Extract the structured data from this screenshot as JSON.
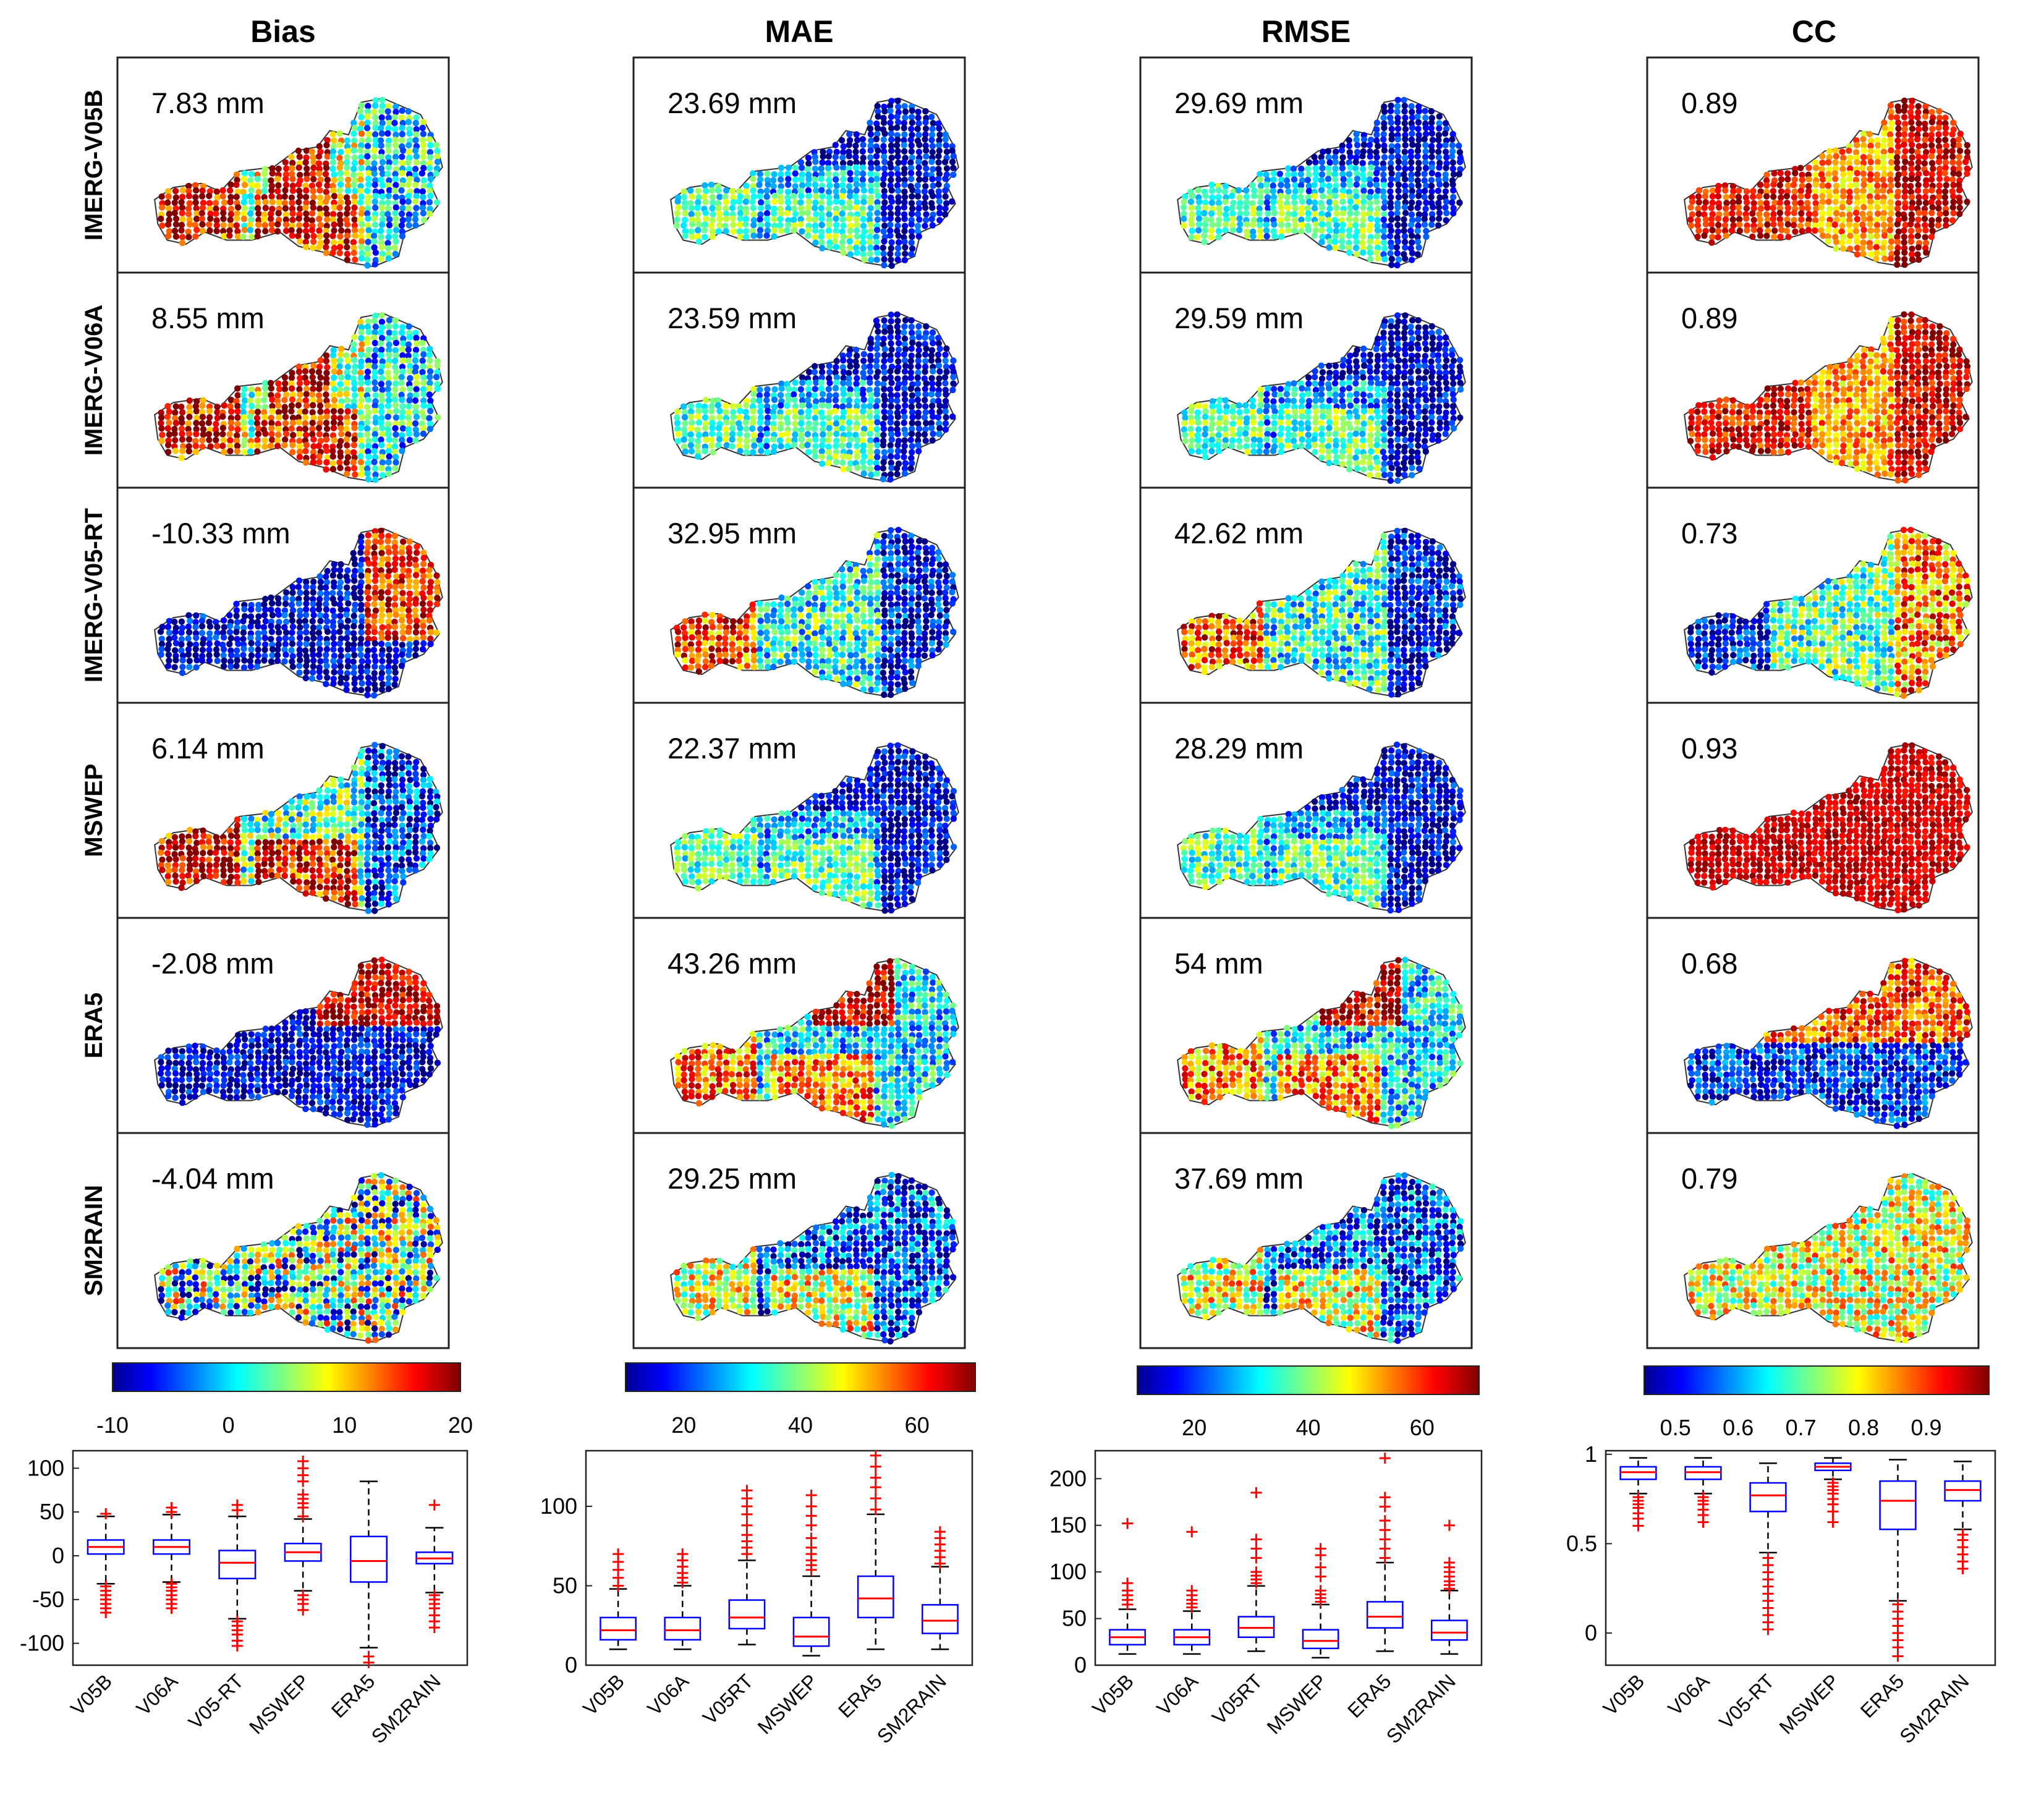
{
  "colors": {
    "panel_frame": "#222222",
    "box": "#0000ff",
    "median": "#ff0000",
    "outlier": "#ff0000",
    "whisker": "#000000",
    "map_outline": "#333333"
  },
  "icons": {
    "map_point": "circle-marker",
    "outlier_marker": "plus-marker"
  },
  "products": [
    "IMERG-V05B",
    "IMERG-V06A",
    "IMERG-V05-RT",
    "MSWEP",
    "ERA5",
    "SM2RAIN"
  ],
  "chart_data": [
    {
      "type": "heatmap",
      "metric": "Bias",
      "title": "Bias",
      "colormap": "jet",
      "colorbar": {
        "range": [
          -10,
          20
        ],
        "ticks": [
          -10,
          0,
          10,
          20
        ],
        "tick_labels": [
          "-10",
          "0",
          "10",
          "20"
        ]
      },
      "panels": [
        {
          "product": "IMERG-V05B",
          "annotation": "7.83 mm",
          "value": 7.83
        },
        {
          "product": "IMERG-V06A",
          "annotation": "8.55 mm",
          "value": 8.55
        },
        {
          "product": "IMERG-V05-RT",
          "annotation": "-10.33 mm",
          "value": -10.33
        },
        {
          "product": "MSWEP",
          "annotation": "6.14 mm",
          "value": 6.14
        },
        {
          "product": "ERA5",
          "annotation": "-2.08 mm",
          "value": -2.08
        },
        {
          "product": "SM2RAIN",
          "annotation": "-4.04 mm",
          "value": -4.04
        }
      ]
    },
    {
      "type": "heatmap",
      "metric": "MAE",
      "title": "MAE",
      "colormap": "jet",
      "colorbar": {
        "range": [
          10,
          70
        ],
        "ticks": [
          20,
          40,
          60
        ],
        "tick_labels": [
          "20",
          "40",
          "60"
        ]
      },
      "panels": [
        {
          "product": "IMERG-V05B",
          "annotation": "23.69 mm",
          "value": 23.69
        },
        {
          "product": "IMERG-V06A",
          "annotation": "23.59 mm",
          "value": 23.59
        },
        {
          "product": "IMERG-V05-RT",
          "annotation": "32.95 mm",
          "value": 32.95
        },
        {
          "product": "MSWEP",
          "annotation": "22.37 mm",
          "value": 22.37
        },
        {
          "product": "ERA5",
          "annotation": "43.26 mm",
          "value": 43.26
        },
        {
          "product": "SM2RAIN",
          "annotation": "29.25 mm",
          "value": 29.25
        }
      ]
    },
    {
      "type": "heatmap",
      "metric": "RMSE",
      "title": "RMSE",
      "colormap": "jet",
      "colorbar": {
        "range": [
          10,
          70
        ],
        "ticks": [
          20,
          40,
          60
        ],
        "tick_labels": [
          "20",
          "40",
          "60"
        ]
      },
      "panels": [
        {
          "product": "IMERG-V05B",
          "annotation": "29.69 mm",
          "value": 29.69
        },
        {
          "product": "IMERG-V06A",
          "annotation": "29.59 mm",
          "value": 29.59
        },
        {
          "product": "IMERG-V05-RT",
          "annotation": "42.62 mm",
          "value": 42.62
        },
        {
          "product": "MSWEP",
          "annotation": "28.29 mm",
          "value": 28.29
        },
        {
          "product": "ERA5",
          "annotation": "54 mm",
          "value": 54
        },
        {
          "product": "SM2RAIN",
          "annotation": "37.69 mm",
          "value": 37.69
        }
      ]
    },
    {
      "type": "heatmap",
      "metric": "CC",
      "title": "CC",
      "colormap": "jet",
      "colorbar": {
        "range": [
          0.45,
          1.0
        ],
        "ticks": [
          0.5,
          0.6,
          0.7,
          0.8,
          0.9
        ],
        "tick_labels": [
          "0.5",
          "0.6",
          "0.7",
          "0.8",
          "0.9"
        ]
      },
      "panels": [
        {
          "product": "IMERG-V05B",
          "annotation": "0.89",
          "value": 0.89
        },
        {
          "product": "IMERG-V06A",
          "annotation": "0.89",
          "value": 0.89
        },
        {
          "product": "IMERG-V05-RT",
          "annotation": "0.73",
          "value": 0.73
        },
        {
          "product": "MSWEP",
          "annotation": "0.93",
          "value": 0.93
        },
        {
          "product": "ERA5",
          "annotation": "0.68",
          "value": 0.68
        },
        {
          "product": "SM2RAIN",
          "annotation": "0.79",
          "value": 0.79
        }
      ]
    },
    {
      "type": "box",
      "metric": "Bias",
      "categories": [
        "V05B",
        "V06A",
        "V05-RT",
        "MSWEP",
        "ERA5",
        "SM2RAIN"
      ],
      "ylim": [
        -125,
        120
      ],
      "yticks": [
        -100,
        -50,
        0,
        50,
        100
      ],
      "boxes": [
        {
          "q1": 2,
          "median": 10,
          "q3": 18,
          "whisker_low": -32,
          "whisker_high": 45,
          "outliers": [
            -35,
            -40,
            -45,
            -50,
            -55,
            -60,
            -65,
            48
          ]
        },
        {
          "q1": 2,
          "median": 10,
          "q3": 18,
          "whisker_low": -30,
          "whisker_high": 47,
          "outliers": [
            -32,
            -36,
            -40,
            -45,
            -50,
            -55,
            -60,
            50,
            55
          ]
        },
        {
          "q1": -26,
          "median": -8,
          "q3": 6,
          "whisker_low": -72,
          "whisker_high": 45,
          "outliers": [
            -75,
            -80,
            -85,
            -90,
            -97,
            -103,
            52,
            58
          ]
        },
        {
          "q1": -6,
          "median": 4,
          "q3": 14,
          "whisker_low": -40,
          "whisker_high": 42,
          "outliers": [
            -45,
            -50,
            -55,
            -62,
            45,
            55,
            60,
            65,
            70,
            85,
            92,
            100,
            108
          ]
        },
        {
          "q1": -30,
          "median": -6,
          "q3": 22,
          "whisker_low": -105,
          "whisker_high": 85,
          "outliers": [
            -115,
            -122
          ]
        },
        {
          "q1": -9,
          "median": -3,
          "q3": 4,
          "whisker_low": -42,
          "whisker_high": 32,
          "outliers": [
            -45,
            -50,
            -55,
            -60,
            -68,
            -75,
            -82,
            58
          ]
        }
      ]
    },
    {
      "type": "box",
      "metric": "MAE",
      "categories": [
        "V05B",
        "V06A",
        "V05RT",
        "MSWEP",
        "ERA5",
        "SM2RAIN"
      ],
      "ylim": [
        0,
        135
      ],
      "yticks": [
        0,
        50,
        100
      ],
      "boxes": [
        {
          "q1": 16,
          "median": 22,
          "q3": 30,
          "whisker_low": 10,
          "whisker_high": 48,
          "outliers": [
            50,
            55,
            60,
            65,
            70
          ]
        },
        {
          "q1": 16,
          "median": 22,
          "q3": 30,
          "whisker_low": 10,
          "whisker_high": 50,
          "outliers": [
            52,
            55,
            58,
            62,
            66,
            70
          ]
        },
        {
          "q1": 23,
          "median": 30,
          "q3": 41,
          "whisker_low": 13,
          "whisker_high": 66,
          "outliers": [
            70,
            74,
            78,
            82,
            88,
            95,
            100,
            105,
            110
          ]
        },
        {
          "q1": 12,
          "median": 18,
          "q3": 30,
          "whisker_low": 6,
          "whisker_high": 56,
          "outliers": [
            60,
            63,
            66,
            70,
            74,
            80,
            88,
            94,
            100,
            107
          ]
        },
        {
          "q1": 30,
          "median": 42,
          "q3": 56,
          "whisker_low": 10,
          "whisker_high": 95,
          "outliers": [
            98,
            105,
            112,
            118,
            125,
            132
          ]
        },
        {
          "q1": 20,
          "median": 28,
          "q3": 38,
          "whisker_low": 10,
          "whisker_high": 62,
          "outliers": [
            64,
            68,
            72,
            76,
            80,
            84
          ]
        }
      ]
    },
    {
      "type": "box",
      "metric": "RMSE",
      "categories": [
        "V05B",
        "V06A",
        "V05RT",
        "MSWEP",
        "ERA5",
        "SM2RAIN"
      ],
      "ylim": [
        0,
        230
      ],
      "yticks": [
        0,
        50,
        100,
        150,
        200
      ],
      "boxes": [
        {
          "q1": 22,
          "median": 30,
          "q3": 38,
          "whisker_low": 12,
          "whisker_high": 60,
          "outliers": [
            65,
            70,
            75,
            80,
            88,
            152
          ]
        },
        {
          "q1": 22,
          "median": 30,
          "q3": 38,
          "whisker_low": 12,
          "whisker_high": 58,
          "outliers": [
            62,
            66,
            70,
            75,
            80,
            143
          ]
        },
        {
          "q1": 30,
          "median": 40,
          "q3": 52,
          "whisker_low": 15,
          "whisker_high": 85,
          "outliers": [
            88,
            92,
            96,
            100,
            115,
            125,
            135,
            185
          ]
        },
        {
          "q1": 18,
          "median": 26,
          "q3": 38,
          "whisker_low": 8,
          "whisker_high": 65,
          "outliers": [
            68,
            72,
            76,
            80,
            95,
            105,
            118,
            125
          ]
        },
        {
          "q1": 40,
          "median": 52,
          "q3": 68,
          "whisker_low": 15,
          "whisker_high": 110,
          "outliers": [
            115,
            125,
            135,
            145,
            155,
            170,
            180,
            222
          ]
        },
        {
          "q1": 27,
          "median": 35,
          "q3": 48,
          "whisker_low": 12,
          "whisker_high": 80,
          "outliers": [
            82,
            86,
            90,
            95,
            100,
            105,
            110,
            150
          ]
        }
      ]
    },
    {
      "type": "box",
      "metric": "CC",
      "categories": [
        "V05B",
        "V06A",
        "V05-RT",
        "MSWEP",
        "ERA5",
        "SM2RAIN"
      ],
      "ylim": [
        -0.18,
        1.02
      ],
      "yticks": [
        0,
        0.5,
        1
      ],
      "boxes": [
        {
          "q1": 0.86,
          "median": 0.9,
          "q3": 0.93,
          "whisker_low": 0.78,
          "whisker_high": 0.98,
          "outliers": [
            0.76,
            0.74,
            0.72,
            0.7,
            0.67,
            0.64,
            0.6
          ]
        },
        {
          "q1": 0.86,
          "median": 0.9,
          "q3": 0.93,
          "whisker_low": 0.78,
          "whisker_high": 0.98,
          "outliers": [
            0.76,
            0.74,
            0.72,
            0.69,
            0.66,
            0.62
          ]
        },
        {
          "q1": 0.68,
          "median": 0.77,
          "q3": 0.84,
          "whisker_low": 0.45,
          "whisker_high": 0.95,
          "outliers": [
            0.42,
            0.38,
            0.34,
            0.3,
            0.26,
            0.22,
            0.18,
            0.14,
            0.1,
            0.06,
            0.02
          ]
        },
        {
          "q1": 0.91,
          "median": 0.93,
          "q3": 0.95,
          "whisker_low": 0.86,
          "whisker_high": 0.98,
          "outliers": [
            0.84,
            0.82,
            0.8,
            0.78,
            0.75,
            0.72,
            0.68,
            0.62
          ]
        },
        {
          "q1": 0.58,
          "median": 0.74,
          "q3": 0.85,
          "whisker_low": 0.18,
          "whisker_high": 0.97,
          "outliers": [
            0.16,
            0.12,
            0.08,
            0.04,
            0.0,
            -0.04,
            -0.08,
            -0.13
          ]
        },
        {
          "q1": 0.74,
          "median": 0.8,
          "q3": 0.85,
          "whisker_low": 0.58,
          "whisker_high": 0.96,
          "outliers": [
            0.55,
            0.52,
            0.48,
            0.44,
            0.4,
            0.36
          ]
        }
      ]
    }
  ]
}
